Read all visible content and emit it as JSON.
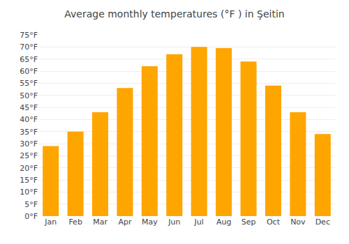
{
  "chart_data": {
    "type": "bar",
    "title": "Average monthly temperatures (°F ) in Şeitin",
    "categories": [
      "Jan",
      "Feb",
      "Mar",
      "Apr",
      "May",
      "Jun",
      "Jul",
      "Aug",
      "Sep",
      "Oct",
      "Nov",
      "Dec"
    ],
    "values": [
      29,
      35,
      43,
      53,
      62,
      67,
      70,
      69.5,
      64,
      54,
      43,
      34
    ],
    "color": "#FFA500",
    "ylim": [
      0,
      75
    ],
    "yticks": [
      {
        "value": 0,
        "label": "0°F"
      },
      {
        "value": 5,
        "label": "5°F"
      },
      {
        "value": 10,
        "label": "10°F"
      },
      {
        "value": 15,
        "label": "15°F"
      },
      {
        "value": 20,
        "label": "20°F"
      },
      {
        "value": 25,
        "label": "25°F"
      },
      {
        "value": 30,
        "label": "30°F"
      },
      {
        "value": 35,
        "label": "35°F"
      },
      {
        "value": 40,
        "label": "40°F"
      },
      {
        "value": 45,
        "label": "45°F"
      },
      {
        "value": 50,
        "label": "50°F"
      },
      {
        "value": 55,
        "label": "55°F"
      },
      {
        "value": 60,
        "label": "60°F"
      },
      {
        "value": 65,
        "label": "65°F"
      },
      {
        "value": 70,
        "label": "70°F"
      },
      {
        "value": 75,
        "label": "75°F"
      }
    ],
    "grid": true
  }
}
